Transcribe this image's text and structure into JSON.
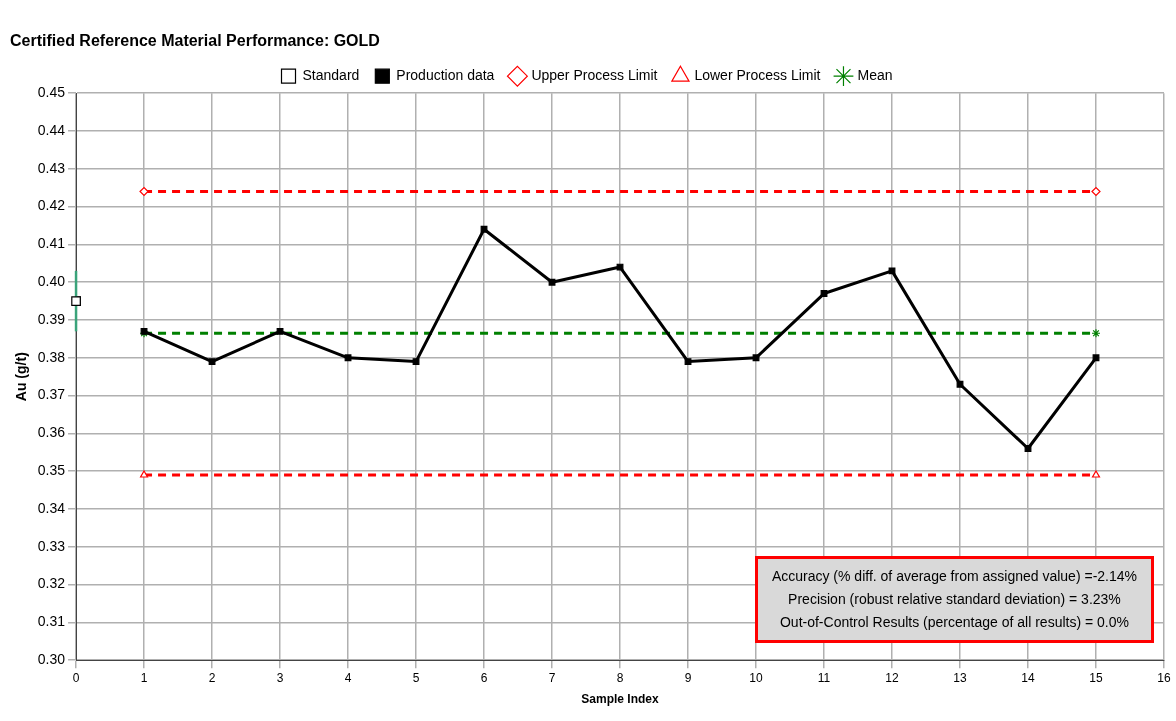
{
  "chart_data": {
    "type": "line",
    "title": "Certified Reference Material Performance: GOLD",
    "xlabel": "Sample Index",
    "ylabel": "Au (g/t)",
    "xlim": [
      0,
      16
    ],
    "xticks": [
      0,
      1,
      2,
      3,
      4,
      5,
      6,
      7,
      8,
      9,
      10,
      11,
      12,
      13,
      14,
      15,
      16
    ],
    "ylim": [
      0.3,
      0.45
    ],
    "yticks": [
      {
        "value": 0.3,
        "label": "0.30"
      },
      {
        "value": 0.31,
        "label": "0.31"
      },
      {
        "value": 0.32,
        "label": "0.32"
      },
      {
        "value": 0.33,
        "label": "0.33"
      },
      {
        "value": 0.34,
        "label": "0.34"
      },
      {
        "value": 0.35,
        "label": "0.35"
      },
      {
        "value": 0.36,
        "label": "0.36"
      },
      {
        "value": 0.37,
        "label": "0.37"
      },
      {
        "value": 0.38,
        "label": "0.38"
      },
      {
        "value": 0.39,
        "label": "0.39"
      },
      {
        "value": 0.4,
        "label": "0.40"
      },
      {
        "value": 0.41,
        "label": "0.41"
      },
      {
        "value": 0.42,
        "label": "0.42"
      },
      {
        "value": 0.43,
        "label": "0.43"
      },
      {
        "value": 0.44,
        "label": "0.44"
      },
      {
        "value": 0.45,
        "label": "0.45"
      }
    ],
    "grid": true,
    "legend": "top",
    "series": [
      {
        "name": "Mean",
        "color": "#008000",
        "type": "line",
        "marker": "cross",
        "line_style": "dashed",
        "x": [
          1,
          15
        ],
        "values": [
          0.3865,
          0.3865
        ]
      },
      {
        "name": "Lower Process Limit",
        "color": "#ff0000",
        "type": "line",
        "marker": "triangle",
        "line_style": "dashed",
        "x": [
          1,
          15
        ],
        "values": [
          0.349,
          0.349
        ]
      },
      {
        "name": "Upper Process Limit",
        "color": "#ff0000",
        "type": "line",
        "marker": "diamond",
        "line_style": "dashed",
        "x": [
          1,
          15
        ],
        "values": [
          0.424,
          0.424
        ]
      },
      {
        "name": "Production data",
        "color": "#000000",
        "type": "line",
        "marker": "square",
        "line_style": "solid",
        "x": [
          1,
          2,
          3,
          4,
          5,
          6,
          7,
          8,
          9,
          10,
          11,
          12,
          13,
          14,
          15
        ],
        "values": [
          0.387,
          0.379,
          0.387,
          0.38,
          0.379,
          0.414,
          0.4,
          0.404,
          0.379,
          0.38,
          0.397,
          0.403,
          0.373,
          0.356,
          0.38
        ]
      },
      {
        "name": "Standard",
        "color": "#000000",
        "type": "scatter",
        "marker": "square",
        "x": [
          0
        ],
        "values": [
          0.395
        ],
        "errors": [
          0.008
        ]
      }
    ],
    "annotations": [
      "Accuracy (% diff. of average from assigned value) =-2.14%",
      "Precision (robust relative standard deviation) = 3.23%",
      "Out-of-Control Results (percentage of all results) = 0.0%"
    ]
  }
}
